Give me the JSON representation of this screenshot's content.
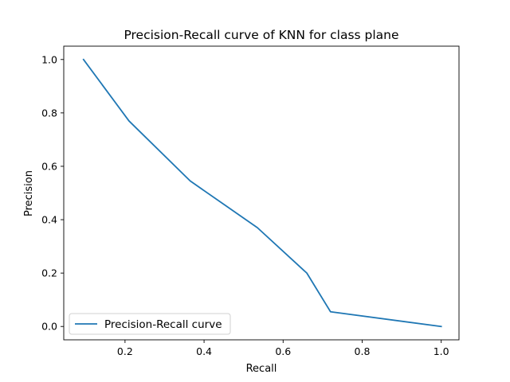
{
  "chart_data": {
    "type": "line",
    "title": "Precision-Recall curve of KNN for class plane",
    "xlabel": "Recall",
    "ylabel": "Precision",
    "xlim": [
      0.045,
      1.045
    ],
    "ylim": [
      -0.05,
      1.05
    ],
    "xticks": [
      0.2,
      0.4,
      0.6,
      0.8,
      1.0
    ],
    "xtick_labels": [
      "0.2",
      "0.4",
      "0.6",
      "0.8",
      "1.0"
    ],
    "yticks": [
      0.0,
      0.2,
      0.4,
      0.6,
      0.8,
      1.0
    ],
    "ytick_labels": [
      "0.0",
      "0.2",
      "0.4",
      "0.6",
      "0.8",
      "1.0"
    ],
    "grid": false,
    "legend_position": "lower-left",
    "series": [
      {
        "name": "Precision-Recall curve",
        "color": "#1f77b4",
        "x": [
          0.095,
          0.21,
          0.365,
          0.535,
          0.66,
          0.72,
          1.0
        ],
        "y": [
          1.0,
          0.77,
          0.545,
          0.37,
          0.2,
          0.055,
          0.0
        ]
      }
    ]
  }
}
